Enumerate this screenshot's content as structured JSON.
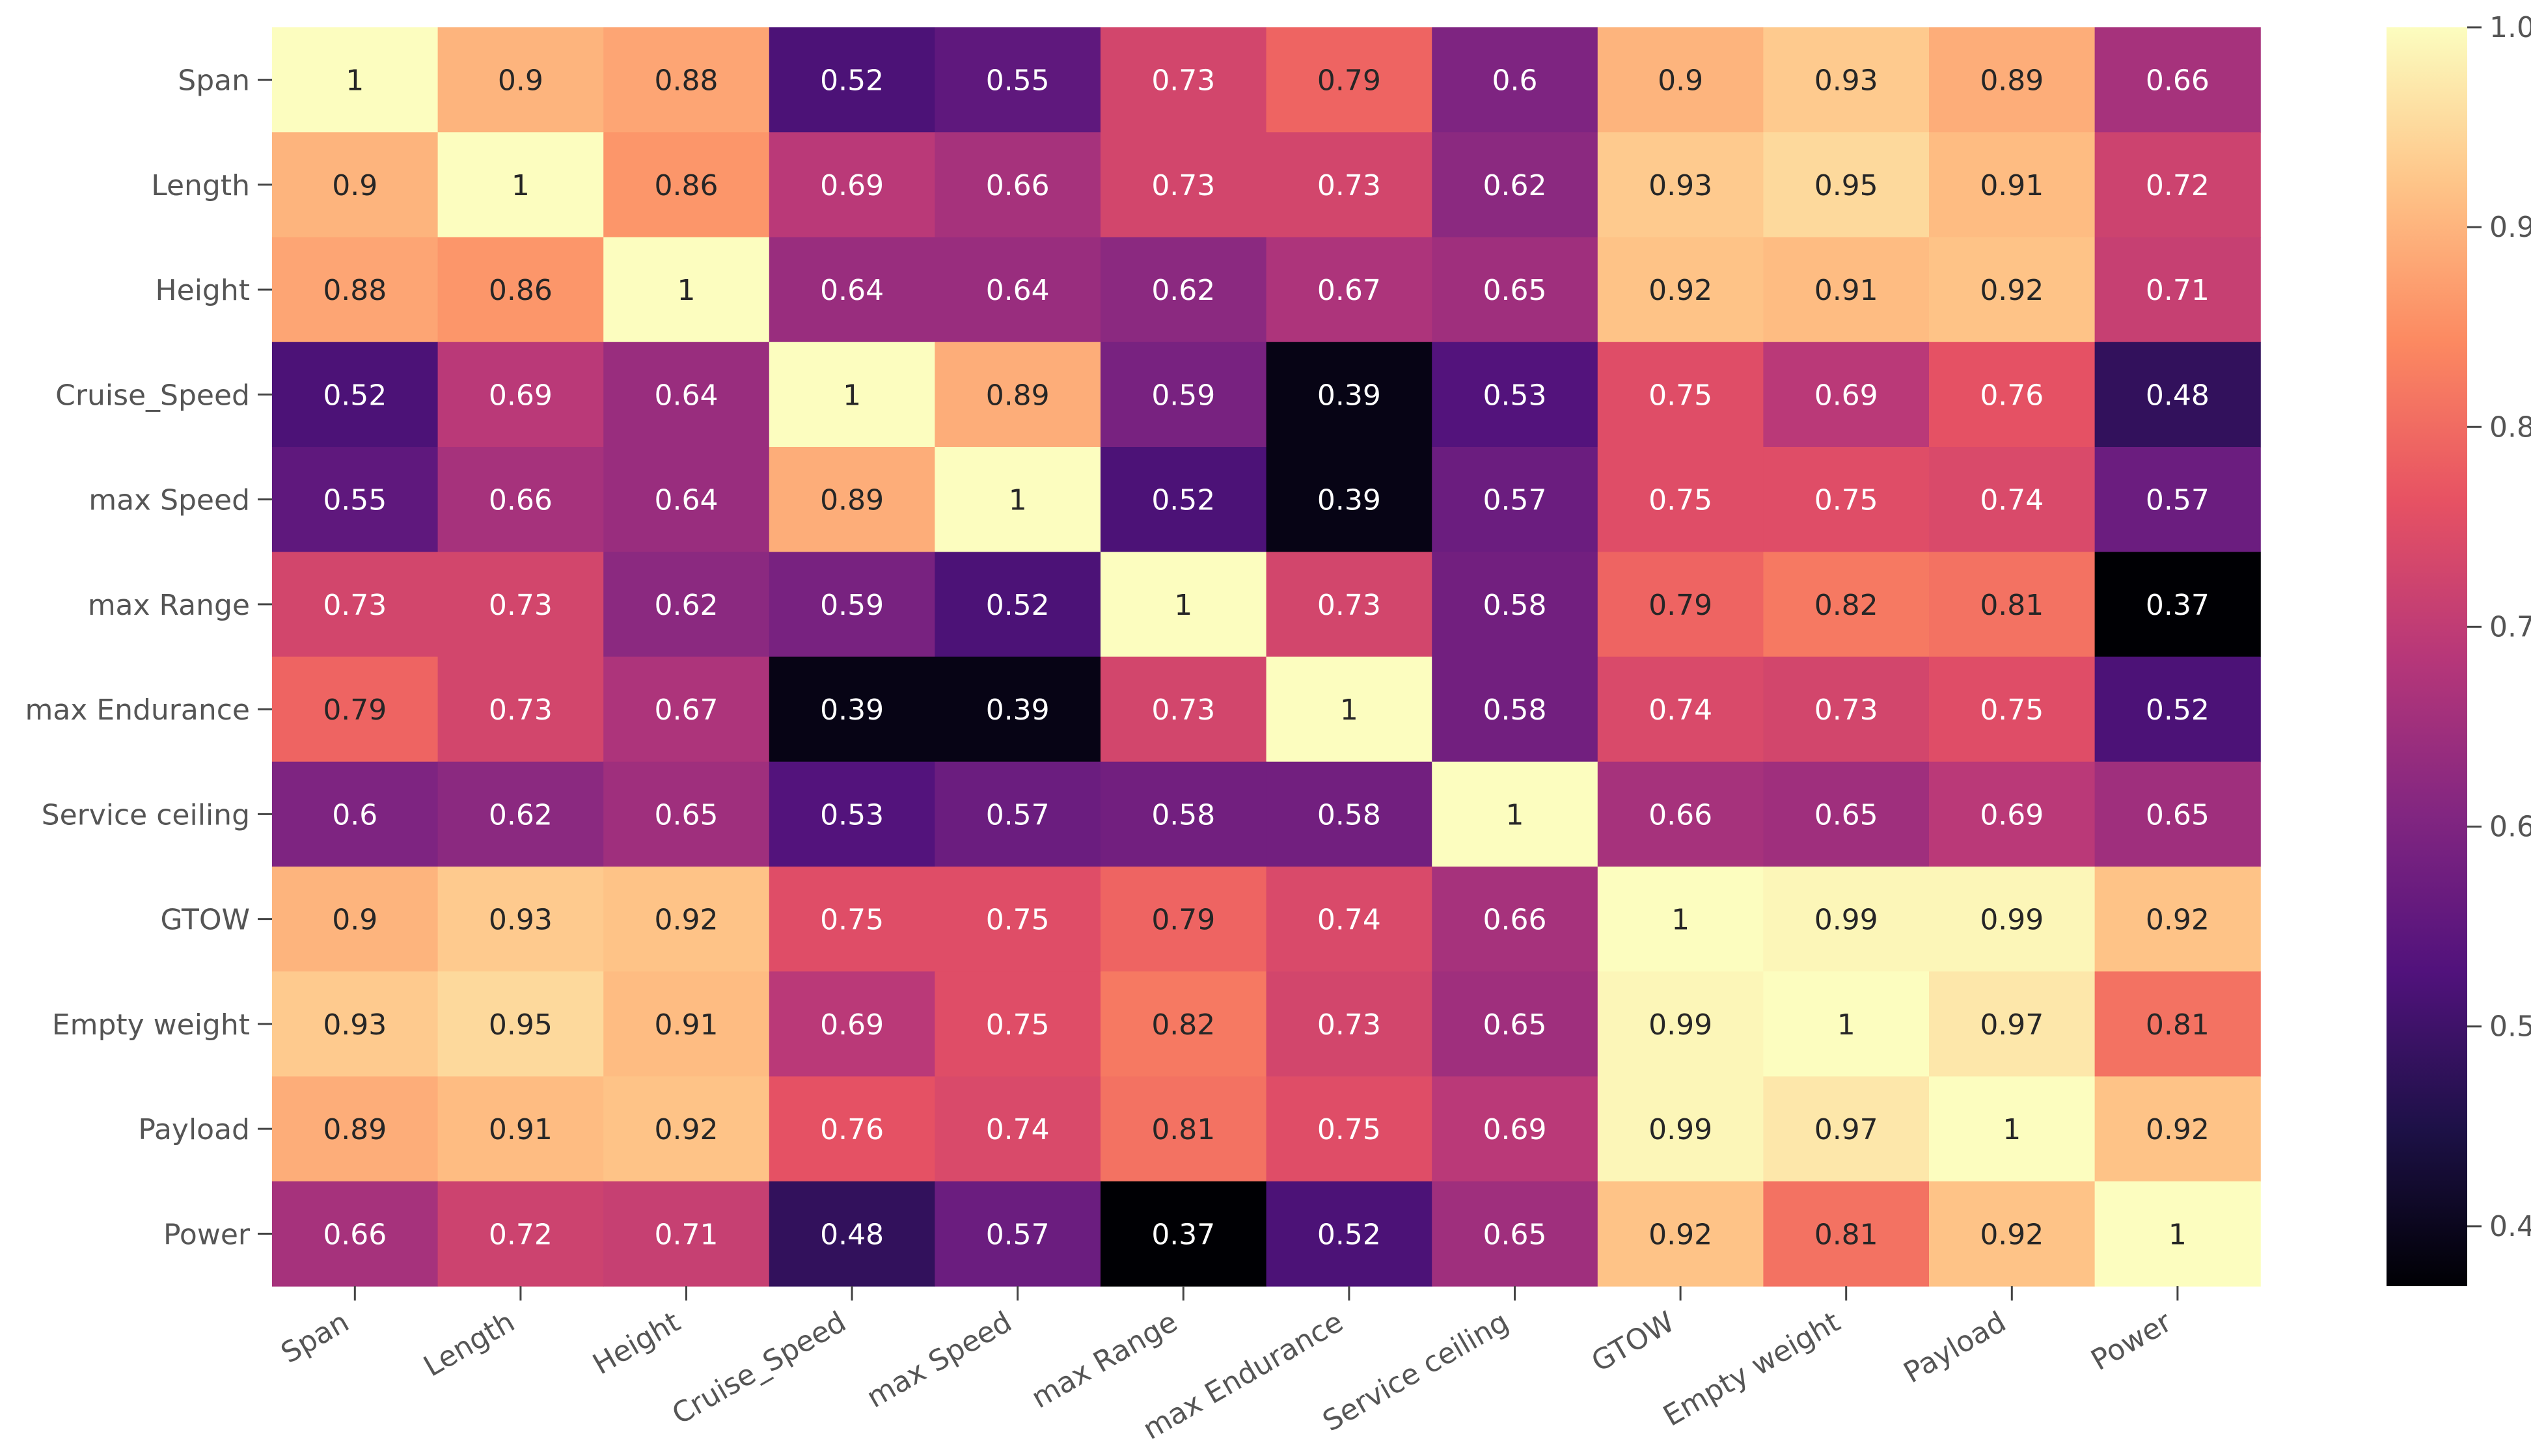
{
  "chart_data": {
    "type": "heatmap",
    "title": "",
    "xlabel": "",
    "ylabel": "",
    "colormap": "magma",
    "labels": [
      "Span",
      "Length",
      "Height",
      "Cruise_Speed",
      "max Speed",
      "max Range",
      "max Endurance",
      "Service ceiling",
      "GTOW",
      "Empty weight",
      "Payload",
      "Power"
    ],
    "values": [
      [
        1,
        0.9,
        0.88,
        0.52,
        0.55,
        0.73,
        0.79,
        0.6,
        0.9,
        0.93,
        0.89,
        0.66
      ],
      [
        0.9,
        1,
        0.86,
        0.69,
        0.66,
        0.73,
        0.73,
        0.62,
        0.93,
        0.95,
        0.91,
        0.72
      ],
      [
        0.88,
        0.86,
        1,
        0.64,
        0.64,
        0.62,
        0.67,
        0.65,
        0.92,
        0.91,
        0.92,
        0.71
      ],
      [
        0.52,
        0.69,
        0.64,
        1,
        0.89,
        0.59,
        0.39,
        0.53,
        0.75,
        0.69,
        0.76,
        0.48
      ],
      [
        0.55,
        0.66,
        0.64,
        0.89,
        1,
        0.52,
        0.39,
        0.57,
        0.75,
        0.75,
        0.74,
        0.57
      ],
      [
        0.73,
        0.73,
        0.62,
        0.59,
        0.52,
        1,
        0.73,
        0.58,
        0.79,
        0.82,
        0.81,
        0.37
      ],
      [
        0.79,
        0.73,
        0.67,
        0.39,
        0.39,
        0.73,
        1,
        0.58,
        0.74,
        0.73,
        0.75,
        0.52
      ],
      [
        0.6,
        0.62,
        0.65,
        0.53,
        0.57,
        0.58,
        0.58,
        1,
        0.66,
        0.65,
        0.69,
        0.65
      ],
      [
        0.9,
        0.93,
        0.92,
        0.75,
        0.75,
        0.79,
        0.74,
        0.66,
        1,
        0.99,
        0.99,
        0.92
      ],
      [
        0.93,
        0.95,
        0.91,
        0.69,
        0.75,
        0.82,
        0.73,
        0.65,
        0.99,
        1,
        0.97,
        0.81
      ],
      [
        0.89,
        0.91,
        0.92,
        0.76,
        0.74,
        0.81,
        0.75,
        0.69,
        0.99,
        0.97,
        1,
        0.92
      ],
      [
        0.66,
        0.72,
        0.71,
        0.48,
        0.57,
        0.37,
        0.52,
        0.65,
        0.92,
        0.81,
        0.92,
        1
      ]
    ],
    "vmin": 0.37,
    "vmax": 1.0,
    "colorbar_ticks": [
      0.4,
      0.5,
      0.6,
      0.7,
      0.8,
      0.9,
      1.0
    ],
    "colorbar_tick_labels": [
      "0.4",
      "0.5",
      "0.6",
      "0.7",
      "0.8",
      "0.9",
      "1.0"
    ]
  }
}
